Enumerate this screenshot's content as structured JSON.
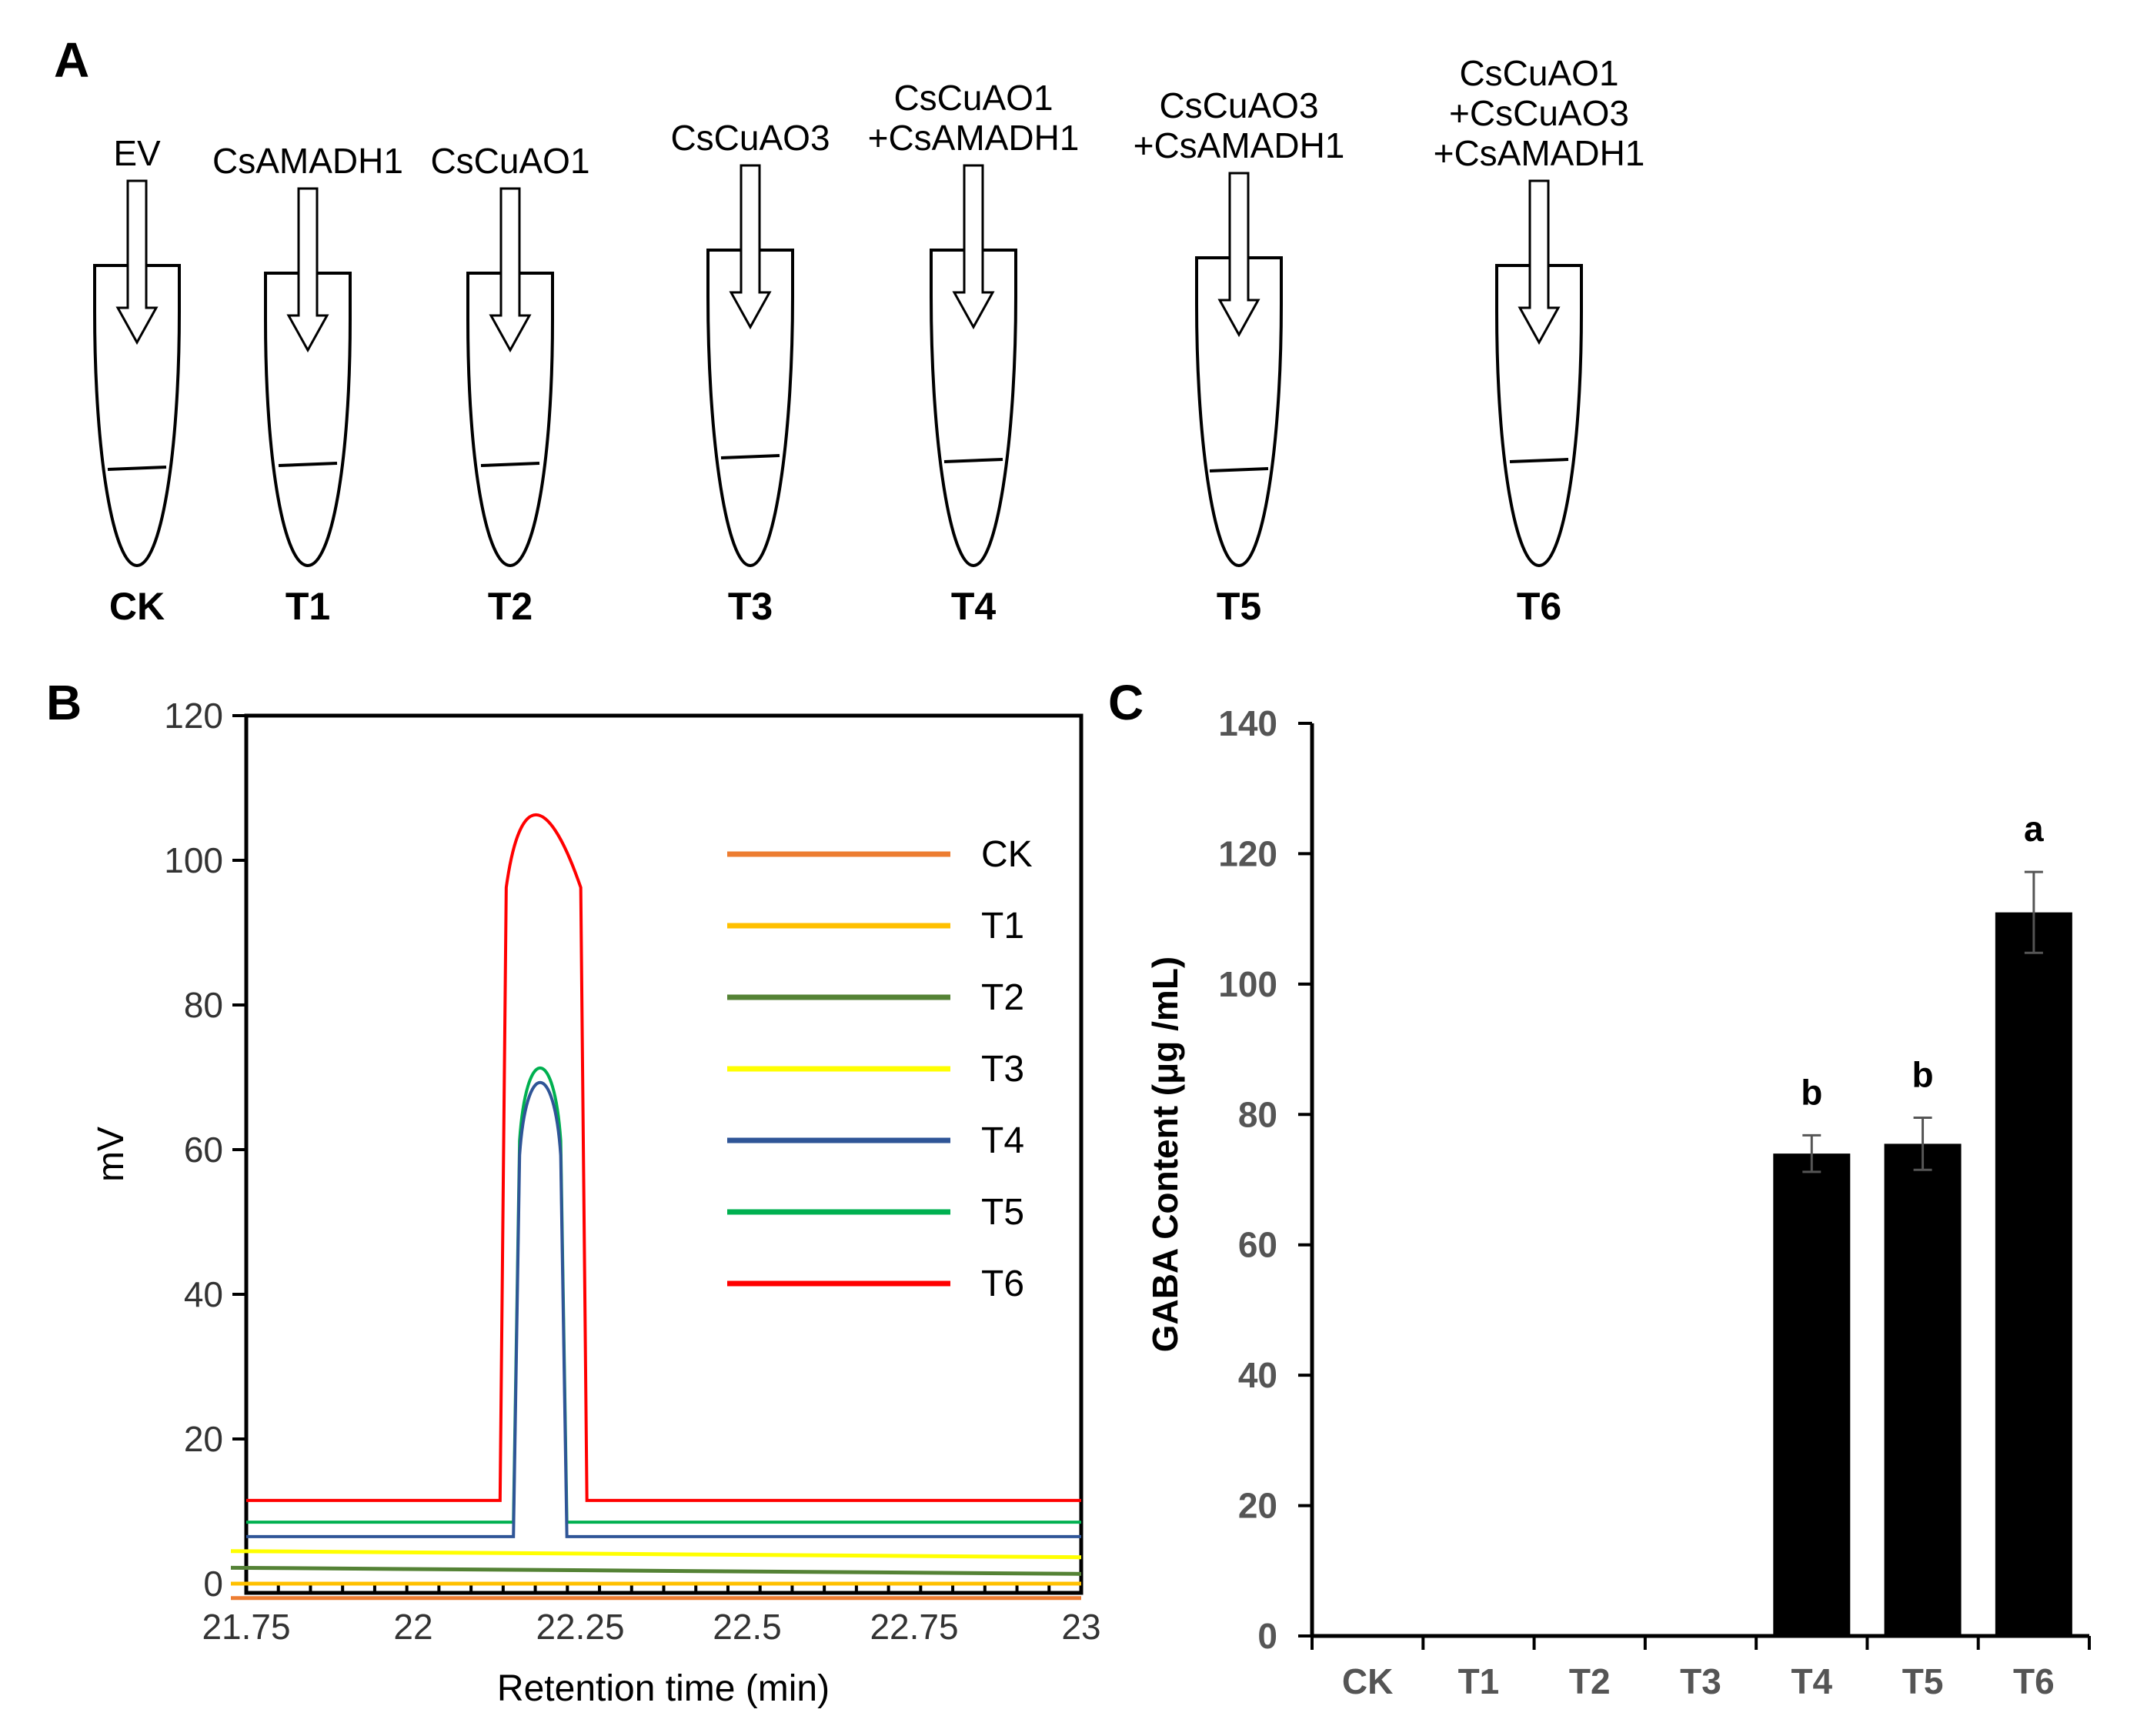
{
  "panel_labels": {
    "a": "A",
    "b": "B",
    "c": "C"
  },
  "tubes": [
    {
      "id": "CK",
      "label_lines": [
        "EV"
      ]
    },
    {
      "id": "T1",
      "label_lines": [
        "CsAMADH1"
      ]
    },
    {
      "id": "T2",
      "label_lines": [
        "CsCuAO1"
      ]
    },
    {
      "id": "T3",
      "label_lines": [
        "CsCuAO3"
      ]
    },
    {
      "id": "T4",
      "label_lines": [
        "CsCuAO1",
        "+CsAMADH1"
      ]
    },
    {
      "id": "T5",
      "label_lines": [
        "CsCuAO3",
        "+CsAMADH1"
      ]
    },
    {
      "id": "T6",
      "label_lines": [
        "CsCuAO1",
        "+CsCuAO3",
        "+CsAMADH1"
      ]
    }
  ],
  "chart_data": [
    {
      "panel": "B",
      "type": "line",
      "xlabel": "Retention time (min)",
      "ylabel": "mV",
      "xlim": [
        21.75,
        23
      ],
      "ylim": [
        0,
        120
      ],
      "x_ticks": [
        "21.75",
        "22",
        "22.25",
        "22.5",
        "22.75",
        "23"
      ],
      "y_ticks": [
        "0",
        "20",
        "40",
        "60",
        "80",
        "100",
        "120"
      ],
      "legend_position": "top-right",
      "series": [
        {
          "name": "CK",
          "color": "#ED7D31",
          "baseline": -2,
          "peak": null
        },
        {
          "name": "T1",
          "color": "#FFC000",
          "baseline": 0,
          "peak": null
        },
        {
          "name": "T2",
          "color": "#548235",
          "baseline": 2.2,
          "peak": null
        },
        {
          "name": "T3",
          "color": "#FFFF00",
          "baseline": 4.5,
          "peak": null
        },
        {
          "name": "T4",
          "color": "#2F5597",
          "baseline": 6.5,
          "peak": {
            "start": 22.15,
            "apex": 22.19,
            "end": 22.23,
            "height": 72
          }
        },
        {
          "name": "T5",
          "color": "#00B050",
          "baseline": 8.5,
          "peak": {
            "start": 22.15,
            "apex": 22.19,
            "end": 22.23,
            "height": 74
          }
        },
        {
          "name": "T6",
          "color": "#FF0000",
          "baseline": 11.5,
          "peak": {
            "start": 22.13,
            "apex": 22.18,
            "end": 22.26,
            "height": 109
          }
        }
      ]
    },
    {
      "panel": "C",
      "type": "bar",
      "ylabel": "GABA Content (μg /mL)",
      "ylim": [
        0,
        140
      ],
      "y_ticks": [
        "0",
        "20",
        "40",
        "60",
        "80",
        "100",
        "120",
        "140"
      ],
      "categories": [
        "CK",
        "T1",
        "T2",
        "T3",
        "T4",
        "T5",
        "T6"
      ],
      "values": [
        0,
        0,
        0,
        0,
        74,
        75.5,
        111
      ],
      "errors": [
        0,
        0,
        0,
        0,
        2.8,
        4,
        6.2
      ],
      "significance": [
        "",
        "",
        "",
        "",
        "b",
        "b",
        "a"
      ],
      "bar_color": "#000000"
    }
  ]
}
